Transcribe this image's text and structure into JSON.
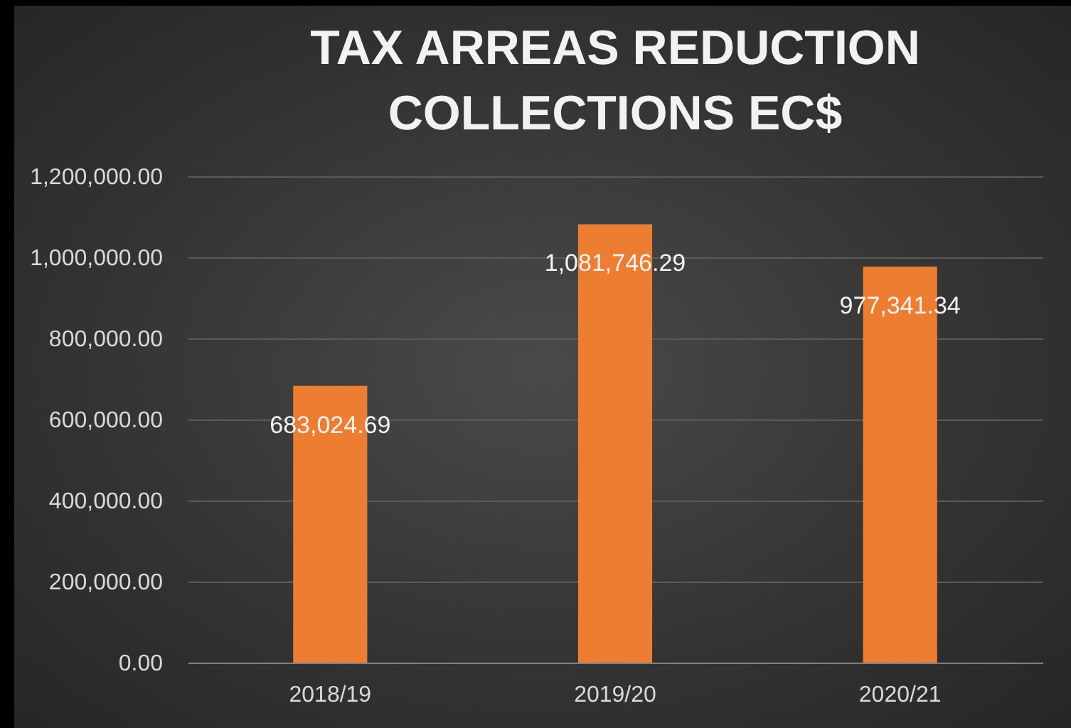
{
  "chart_data": {
    "type": "bar",
    "title": "TAX ARREAS REDUCTION COLLECTIONS EC$",
    "categories": [
      "2018/19",
      "2019/20",
      "2020/21"
    ],
    "values": [
      683024.69,
      1081746.29,
      977341.34
    ],
    "value_labels": [
      "683,024.69",
      "1,081,746.29",
      "977,341.34"
    ],
    "color": "#ed7d31",
    "ylim": [
      0,
      1200000
    ],
    "yticks": [
      {
        "value": 0,
        "label": "0.00"
      },
      {
        "value": 200000,
        "label": "200,000.00"
      },
      {
        "value": 400000,
        "label": "400,000.00"
      },
      {
        "value": 600000,
        "label": "600,000.00"
      },
      {
        "value": 800000,
        "label": "800,000.00"
      },
      {
        "value": 1000000,
        "label": "1,000,000.00"
      },
      {
        "value": 1200000,
        "label": "1,200,000.00"
      }
    ],
    "grid": "y"
  }
}
